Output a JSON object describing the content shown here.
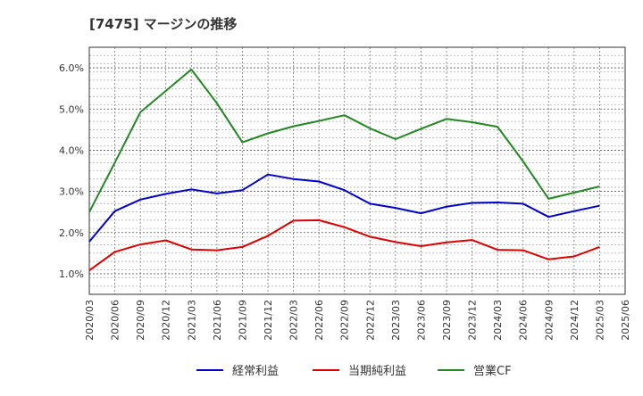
{
  "chart_data": {
    "type": "line",
    "title": "[7475]  マージンの推移",
    "xlabel": "",
    "ylabel": "",
    "ylim": [
      0.5,
      6.5
    ],
    "yticks": [
      1.0,
      2.0,
      3.0,
      4.0,
      5.0,
      6.0
    ],
    "ytick_labels": [
      "1.0%",
      "2.0%",
      "3.0%",
      "4.0%",
      "5.0%",
      "6.0%"
    ],
    "grid": true,
    "legend_position": "bottom",
    "categories": [
      "2020/03",
      "2020/06",
      "2020/09",
      "2020/12",
      "2021/03",
      "2021/06",
      "2021/09",
      "2021/12",
      "2022/03",
      "2022/06",
      "2022/09",
      "2022/12",
      "2023/03",
      "2023/06",
      "2023/09",
      "2023/12",
      "2024/03",
      "2024/06",
      "2024/09",
      "2024/12",
      "2025/03",
      "2025/06"
    ],
    "series": [
      {
        "name": "経常利益",
        "color": "#0000cc",
        "values": [
          1.78,
          2.52,
          2.8,
          2.94,
          3.05,
          2.95,
          3.03,
          3.41,
          3.3,
          3.24,
          3.03,
          2.7,
          2.6,
          2.47,
          2.63,
          2.72,
          2.73,
          2.7,
          2.38,
          2.52,
          2.65,
          null
        ]
      },
      {
        "name": "当期純利益",
        "color": "#dd0000",
        "values": [
          1.08,
          1.53,
          1.71,
          1.81,
          1.59,
          1.57,
          1.65,
          1.92,
          2.29,
          2.3,
          2.13,
          1.9,
          1.77,
          1.67,
          1.76,
          1.82,
          1.58,
          1.57,
          1.35,
          1.42,
          1.65,
          null
        ]
      },
      {
        "name": "営業CF",
        "color": "#228822",
        "values": [
          2.5,
          3.7,
          4.92,
          5.44,
          5.96,
          5.14,
          4.19,
          4.41,
          4.58,
          4.71,
          4.85,
          4.53,
          4.27,
          4.52,
          4.76,
          4.68,
          4.57,
          3.73,
          2.82,
          2.97,
          3.12,
          null
        ]
      }
    ]
  }
}
